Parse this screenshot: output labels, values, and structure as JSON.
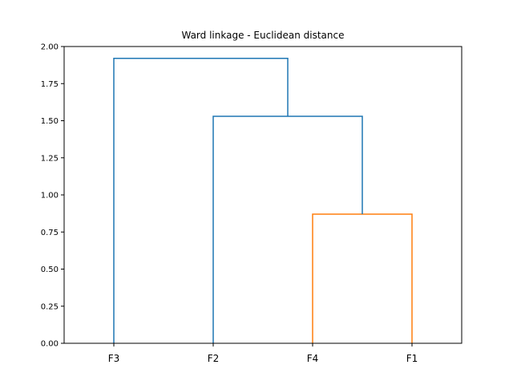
{
  "chart_data": {
    "type": "dendrogram",
    "title": "Ward linkage - Euclidean distance",
    "xlabel": "",
    "ylabel": "",
    "leaves": [
      "F3",
      "F2",
      "F4",
      "F1"
    ],
    "ylim": [
      0,
      2.0
    ],
    "yticks": [
      "0.00",
      "0.25",
      "0.50",
      "0.75",
      "1.00",
      "1.25",
      "1.50",
      "1.75",
      "2.00"
    ],
    "links": [
      {
        "left": "F4",
        "right": "F1",
        "height": 0.87,
        "color": "#ff7f0e"
      },
      {
        "left": "F2",
        "right": "F4+F1",
        "height": 1.53,
        "color": "#1f77b4"
      },
      {
        "left": "F3",
        "right": "F2+F4+F1",
        "height": 1.92,
        "color": "#1f77b4"
      }
    ],
    "grid": false,
    "legend": "none"
  }
}
